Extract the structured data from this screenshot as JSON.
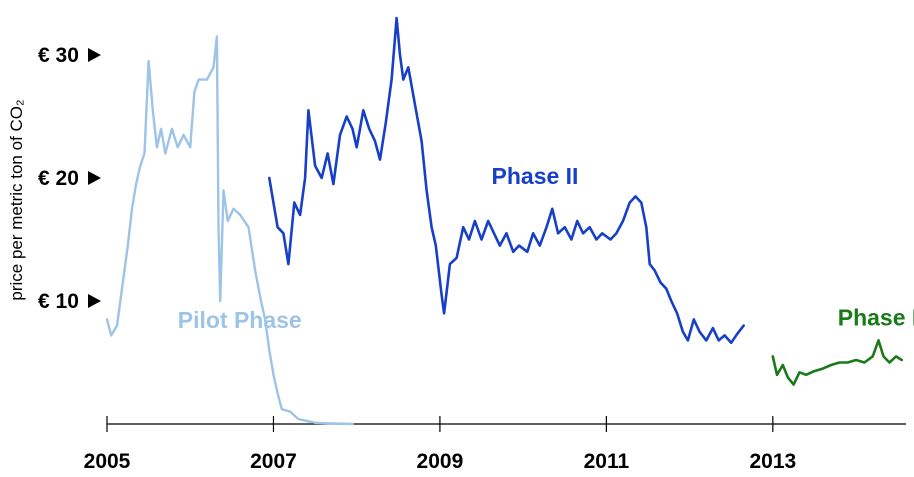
{
  "chart_data": {
    "type": "line",
    "title": "",
    "ylabel": "price per metric ton of CO₂",
    "xlabel": "",
    "xlim": [
      2005.0,
      2014.6
    ],
    "ylim": [
      0,
      35
    ],
    "x_ticks": [
      2005,
      2007,
      2009,
      2011,
      2013
    ],
    "x_tick_labels": [
      "2005",
      "2007",
      "2009",
      "2011",
      "2013"
    ],
    "y_ticks": [
      10,
      20,
      30
    ],
    "y_tick_labels": [
      "€ 10",
      "€ 20",
      "€ 30"
    ],
    "grid": false,
    "legend": "none",
    "series": [
      {
        "name": "Pilot Phase",
        "color": "#9dc3e6",
        "points": [
          [
            2005.0,
            8.5
          ],
          [
            2005.05,
            7.2
          ],
          [
            2005.12,
            8.0
          ],
          [
            2005.18,
            11.0
          ],
          [
            2005.25,
            14.5
          ],
          [
            2005.3,
            17.5
          ],
          [
            2005.35,
            19.5
          ],
          [
            2005.4,
            21.0
          ],
          [
            2005.45,
            22.0
          ],
          [
            2005.5,
            29.5
          ],
          [
            2005.55,
            25.5
          ],
          [
            2005.6,
            22.5
          ],
          [
            2005.65,
            24.0
          ],
          [
            2005.7,
            22.0
          ],
          [
            2005.78,
            24.0
          ],
          [
            2005.85,
            22.5
          ],
          [
            2005.92,
            23.5
          ],
          [
            2006.0,
            22.5
          ],
          [
            2006.05,
            27.0
          ],
          [
            2006.1,
            28.0
          ],
          [
            2006.2,
            28.0
          ],
          [
            2006.28,
            29.0
          ],
          [
            2006.32,
            31.5
          ],
          [
            2006.34,
            16.0
          ],
          [
            2006.36,
            10.0
          ],
          [
            2006.4,
            19.0
          ],
          [
            2006.45,
            16.5
          ],
          [
            2006.52,
            17.5
          ],
          [
            2006.6,
            17.0
          ],
          [
            2006.7,
            16.0
          ],
          [
            2006.78,
            12.5
          ],
          [
            2006.85,
            10.0
          ],
          [
            2006.9,
            8.5
          ],
          [
            2006.95,
            6.0
          ],
          [
            2007.0,
            4.0
          ],
          [
            2007.05,
            2.5
          ],
          [
            2007.1,
            1.2
          ],
          [
            2007.2,
            1.0
          ],
          [
            2007.3,
            0.4
          ],
          [
            2007.5,
            0.1
          ],
          [
            2007.7,
            0.05
          ],
          [
            2007.95,
            0.0
          ]
        ]
      },
      {
        "name": "Phase II",
        "color": "#1740c8",
        "points": [
          [
            2006.95,
            20.0
          ],
          [
            2007.05,
            16.0
          ],
          [
            2007.12,
            15.5
          ],
          [
            2007.18,
            13.0
          ],
          [
            2007.25,
            18.0
          ],
          [
            2007.32,
            17.0
          ],
          [
            2007.38,
            20.0
          ],
          [
            2007.42,
            25.5
          ],
          [
            2007.5,
            21.0
          ],
          [
            2007.58,
            20.0
          ],
          [
            2007.65,
            22.0
          ],
          [
            2007.72,
            19.5
          ],
          [
            2007.8,
            23.5
          ],
          [
            2007.88,
            25.0
          ],
          [
            2007.95,
            24.0
          ],
          [
            2008.0,
            22.5
          ],
          [
            2008.08,
            25.5
          ],
          [
            2008.15,
            24.0
          ],
          [
            2008.22,
            23.0
          ],
          [
            2008.28,
            21.5
          ],
          [
            2008.35,
            24.5
          ],
          [
            2008.42,
            28.0
          ],
          [
            2008.48,
            33.0
          ],
          [
            2008.52,
            30.0
          ],
          [
            2008.56,
            28.0
          ],
          [
            2008.62,
            29.0
          ],
          [
            2008.7,
            26.0
          ],
          [
            2008.78,
            23.0
          ],
          [
            2008.84,
            19.0
          ],
          [
            2008.9,
            16.0
          ],
          [
            2008.95,
            14.5
          ],
          [
            2009.02,
            10.5
          ],
          [
            2009.05,
            9.0
          ],
          [
            2009.12,
            13.0
          ],
          [
            2009.2,
            13.5
          ],
          [
            2009.28,
            16.0
          ],
          [
            2009.35,
            15.0
          ],
          [
            2009.42,
            16.5
          ],
          [
            2009.5,
            15.0
          ],
          [
            2009.58,
            16.5
          ],
          [
            2009.65,
            15.5
          ],
          [
            2009.72,
            14.5
          ],
          [
            2009.8,
            15.5
          ],
          [
            2009.88,
            14.0
          ],
          [
            2009.95,
            14.5
          ],
          [
            2010.05,
            14.0
          ],
          [
            2010.12,
            15.5
          ],
          [
            2010.2,
            14.5
          ],
          [
            2010.28,
            16.0
          ],
          [
            2010.35,
            17.5
          ],
          [
            2010.42,
            15.5
          ],
          [
            2010.5,
            16.0
          ],
          [
            2010.58,
            15.0
          ],
          [
            2010.65,
            16.5
          ],
          [
            2010.72,
            15.5
          ],
          [
            2010.8,
            16.0
          ],
          [
            2010.88,
            15.0
          ],
          [
            2010.95,
            15.5
          ],
          [
            2011.05,
            15.0
          ],
          [
            2011.12,
            15.5
          ],
          [
            2011.2,
            16.5
          ],
          [
            2011.28,
            18.0
          ],
          [
            2011.35,
            18.5
          ],
          [
            2011.42,
            18.0
          ],
          [
            2011.48,
            16.0
          ],
          [
            2011.52,
            13.0
          ],
          [
            2011.58,
            12.5
          ],
          [
            2011.65,
            11.5
          ],
          [
            2011.72,
            11.0
          ],
          [
            2011.78,
            10.0
          ],
          [
            2011.85,
            9.0
          ],
          [
            2011.92,
            7.5
          ],
          [
            2011.98,
            6.8
          ],
          [
            2012.05,
            8.5
          ],
          [
            2012.12,
            7.5
          ],
          [
            2012.2,
            6.8
          ],
          [
            2012.28,
            7.8
          ],
          [
            2012.35,
            6.8
          ],
          [
            2012.42,
            7.2
          ],
          [
            2012.5,
            6.6
          ],
          [
            2012.57,
            7.3
          ],
          [
            2012.65,
            8.0
          ]
        ]
      },
      {
        "name": "Phase III",
        "color": "#1a7a1a",
        "points": [
          [
            2013.0,
            5.5
          ],
          [
            2013.05,
            4.0
          ],
          [
            2013.12,
            4.8
          ],
          [
            2013.18,
            3.8
          ],
          [
            2013.25,
            3.2
          ],
          [
            2013.32,
            4.2
          ],
          [
            2013.4,
            4.0
          ],
          [
            2013.5,
            4.3
          ],
          [
            2013.6,
            4.5
          ],
          [
            2013.7,
            4.8
          ],
          [
            2013.8,
            5.0
          ],
          [
            2013.9,
            5.0
          ],
          [
            2014.0,
            5.2
          ],
          [
            2014.1,
            5.0
          ],
          [
            2014.2,
            5.5
          ],
          [
            2014.27,
            6.8
          ],
          [
            2014.33,
            5.5
          ],
          [
            2014.4,
            5.0
          ],
          [
            2014.48,
            5.5
          ],
          [
            2014.55,
            5.2
          ]
        ]
      }
    ],
    "annotations": [
      {
        "text": "Pilot Phase",
        "x": 2005.85,
        "y": 7.8,
        "color": "#9dc3e6"
      },
      {
        "text": "Phase II",
        "x": 2009.62,
        "y": 19.5,
        "color": "#1740c8"
      },
      {
        "text": "Phase III",
        "x": 2013.78,
        "y": 8.0,
        "color": "#1a7a1a"
      }
    ]
  }
}
